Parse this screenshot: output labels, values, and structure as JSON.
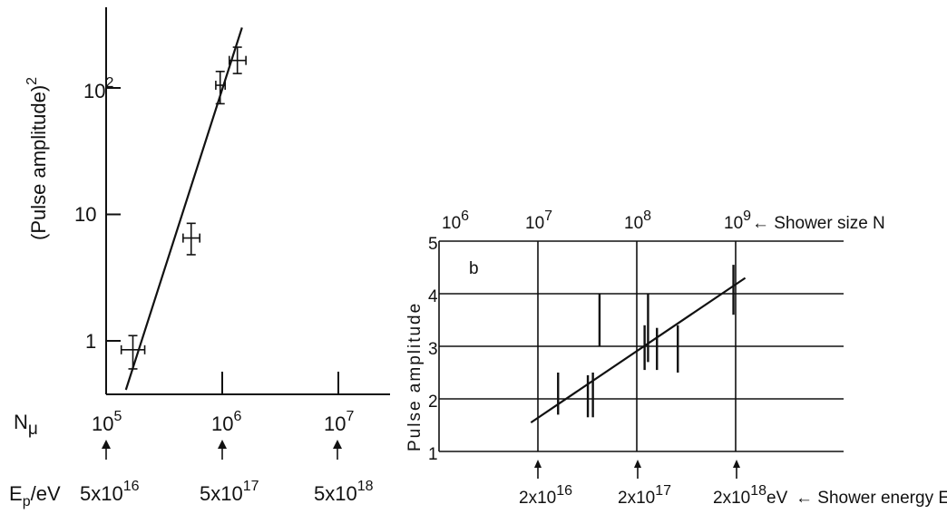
{
  "chart_data": [
    {
      "type": "scatter",
      "panel": "left",
      "ylabel": "(Pulse amplitude)",
      "ylabel_exponent": "2",
      "y_log": true,
      "y_ticks": [
        1,
        10,
        100
      ],
      "y_tick_labels": [
        "1",
        "10",
        "10",
        "2"
      ],
      "xlabel": "N",
      "xlabel_sub": "μ",
      "x_log": true,
      "x_ticks": [
        100000,
        1000000,
        10000000
      ],
      "x_tick_labels": [
        {
          "base": "10",
          "exp": "5"
        },
        {
          "base": "10",
          "exp": "6"
        },
        {
          "base": "10",
          "exp": "7"
        }
      ],
      "energy_label": {
        "main": "E",
        "sub": "p",
        "rest": "/eV"
      },
      "energy_ticks": [
        {
          "base": "5x10",
          "exp": "16"
        },
        {
          "base": "5x10",
          "exp": "17"
        },
        {
          "base": "5x10",
          "exp": "18"
        }
      ],
      "points": [
        {
          "x": 170000,
          "y": 0.85,
          "x_err": [
            135000,
            215000
          ],
          "y_err": [
            0.6,
            1.1
          ]
        },
        {
          "x": 540000,
          "y": 6.5,
          "x_err": [
            460000,
            640000
          ],
          "y_err": [
            4.8,
            8.5
          ]
        },
        {
          "x": 960000,
          "y": 105,
          "x_err": [
            880000,
            1060000
          ],
          "y_err": [
            75,
            135
          ]
        },
        {
          "x": 1350000,
          "y": 165,
          "x_err": [
            1150000,
            1600000
          ],
          "y_err": [
            130,
            210
          ]
        }
      ],
      "fit_line": [
        {
          "x": 148000,
          "y": 0.41
        },
        {
          "x": 1480000,
          "y": 300
        }
      ]
    },
    {
      "type": "scatter",
      "panel": "right",
      "panel_label": "b",
      "ylabel": "Pulse amplitude",
      "ylim": [
        1,
        5
      ],
      "y_tick_labels": [
        "1",
        "2",
        "3",
        "4",
        "5"
      ],
      "top_axis_label": "← Shower size N",
      "top_ticks": [
        {
          "value": 1000000,
          "base": "10",
          "exp": "6"
        },
        {
          "value": 10000000,
          "base": "10",
          "exp": "7"
        },
        {
          "value": 100000000,
          "base": "10",
          "exp": "8"
        },
        {
          "value": 1000000000,
          "base": "10",
          "exp": "9"
        }
      ],
      "bottom_axis_label": {
        "text": "← Shower energy E",
        "sub": "p"
      },
      "bottom_ticks": [
        {
          "value": 20000000000000000,
          "label": "2x10",
          "exp": "16",
          "unit": ""
        },
        {
          "value": 200000000000000000,
          "label": "2x10",
          "exp": "17",
          "unit": ""
        },
        {
          "value": 2000000000000000000,
          "label": "2x10",
          "exp": "18",
          "unit": "eV"
        }
      ],
      "x_log": true,
      "x_units": "shower size N",
      "xlim": [
        1000000,
        2000000000
      ],
      "error_bars": [
        {
          "x": 16000000,
          "y_low": 1.7,
          "y_high": 2.5
        },
        {
          "x": 32000000,
          "y_low": 1.65,
          "y_high": 2.45
        },
        {
          "x": 36000000,
          "y_low": 1.65,
          "y_high": 2.5
        },
        {
          "x": 42000000,
          "y_low": 3.0,
          "y_high": 4.0
        },
        {
          "x": 120000000,
          "y_low": 2.55,
          "y_high": 3.4
        },
        {
          "x": 130000000,
          "y_low": 2.7,
          "y_high": 4.0
        },
        {
          "x": 160000000,
          "y_low": 2.55,
          "y_high": 3.35
        },
        {
          "x": 260000000,
          "y_low": 2.5,
          "y_high": 3.4
        },
        {
          "x": 950000000,
          "y_low": 3.6,
          "y_high": 4.55
        }
      ],
      "fit_line": [
        {
          "x": 8500000,
          "y": 1.55
        },
        {
          "x": 1250000000,
          "y": 4.3
        }
      ]
    }
  ]
}
